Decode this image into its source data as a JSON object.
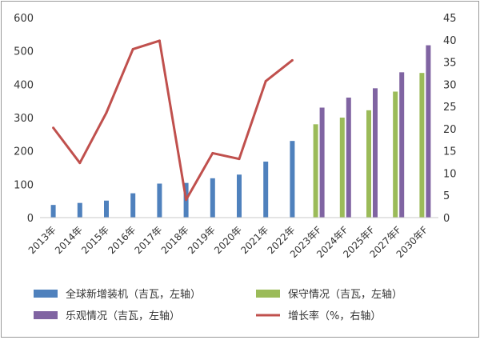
{
  "chart_data": {
    "type": "bar",
    "categories": [
      "2013年",
      "2014年",
      "2015年",
      "2016年",
      "2017年",
      "2018年",
      "2019年",
      "2020年",
      "2021年",
      "2022年",
      "2023年F",
      "2024年F",
      "2025年F",
      "2027年F",
      "2030年F"
    ],
    "y_left": {
      "ticks": [
        0,
        100,
        200,
        300,
        400,
        500,
        600
      ],
      "ylim": [
        0,
        600
      ]
    },
    "y_right": {
      "ticks": [
        0,
        5,
        10,
        15,
        20,
        25,
        30,
        35,
        40,
        45
      ],
      "ylim": [
        0,
        45
      ]
    },
    "series": [
      {
        "name": "全球新增装机（吉瓦，左轴）",
        "kind": "bar",
        "axis": "left",
        "color": "#4f81bd",
        "values": [
          38,
          44,
          51,
          73,
          102,
          104,
          118,
          129,
          168,
          230,
          null,
          null,
          null,
          null,
          null
        ]
      },
      {
        "name": "保守情况（吉瓦，左轴）",
        "kind": "bar",
        "axis": "left",
        "color": "#9bbb59",
        "values": [
          null,
          null,
          null,
          null,
          null,
          null,
          null,
          null,
          null,
          null,
          280,
          300,
          322,
          378,
          434
        ]
      },
      {
        "name": "乐观情况（吉瓦，左轴）",
        "kind": "bar",
        "axis": "left",
        "color": "#8064a2",
        "values": [
          null,
          null,
          null,
          null,
          null,
          null,
          null,
          null,
          null,
          null,
          330,
          360,
          388,
          436,
          517
        ]
      },
      {
        "name": "增长率（%，右轴）",
        "kind": "line",
        "axis": "right",
        "color": "#c0504d",
        "values": [
          20.2,
          12.3,
          23.6,
          37.9,
          39.8,
          4.0,
          14.5,
          13.2,
          30.7,
          35.4,
          null,
          null,
          null,
          null,
          null
        ]
      }
    ],
    "grid": false,
    "legend_position": "bottom"
  }
}
